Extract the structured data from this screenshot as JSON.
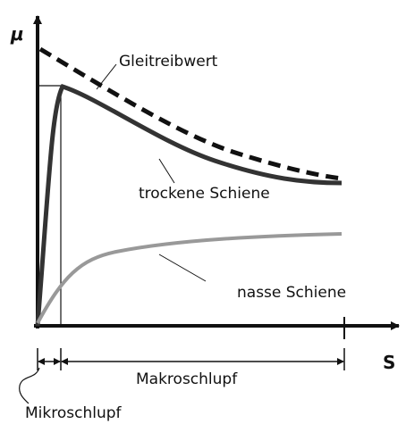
{
  "axes": {
    "y_label": "μ",
    "x_label": "S"
  },
  "curves": {
    "sliding": "Gleitreibwert",
    "dry": "trockene Schiene",
    "wet": "nasse Schiene"
  },
  "ranges": {
    "macro": "Makroschlupf",
    "micro": "Mikroschlupf"
  }
}
